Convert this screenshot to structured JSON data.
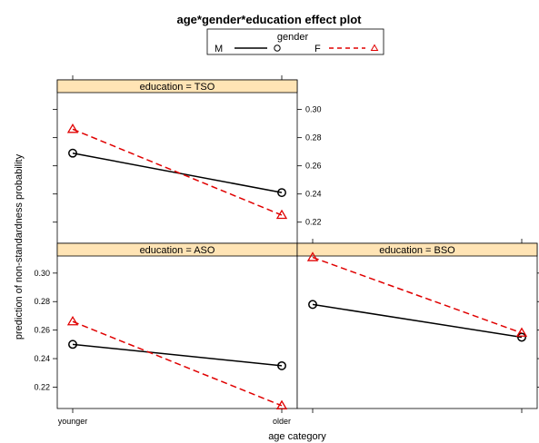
{
  "title": "age*gender*education effect plot",
  "legend": {
    "title": "gender",
    "entries": [
      {
        "label": "M",
        "color": "#000000",
        "line": "solid",
        "marker": "circle"
      },
      {
        "label": "F",
        "color": "#e00000",
        "line": "dashed",
        "marker": "triangle"
      }
    ]
  },
  "colors": {
    "strip": "#ffe4b5",
    "M": "#000000",
    "F": "#e00000"
  },
  "chart_data": {
    "type": "line",
    "title": "age*gender*education effect plot",
    "xlabel": "age category",
    "ylabel": "prediction of non-standardness probability",
    "categories": [
      "younger",
      "older"
    ],
    "ylim": [
      0.205,
      0.312
    ],
    "yticks": [
      0.22,
      0.24,
      0.26,
      0.28,
      0.3
    ],
    "ytick_labels": [
      "0.22",
      "0.24",
      "0.26",
      "0.28",
      "0.30"
    ],
    "legend_position": "top",
    "panels": [
      {
        "strip": "education = TSO",
        "series": [
          {
            "name": "M",
            "values": [
              0.269,
              0.241
            ]
          },
          {
            "name": "F",
            "values": [
              0.286,
              0.225
            ]
          }
        ]
      },
      {
        "strip": "education = ASO",
        "series": [
          {
            "name": "M",
            "values": [
              0.25,
              0.235
            ]
          },
          {
            "name": "F",
            "values": [
              0.266,
              0.207
            ]
          }
        ]
      },
      {
        "strip": "education = BSO",
        "series": [
          {
            "name": "M",
            "values": [
              0.278,
              0.255
            ]
          },
          {
            "name": "F",
            "values": [
              0.311,
              0.258
            ]
          }
        ]
      }
    ]
  }
}
